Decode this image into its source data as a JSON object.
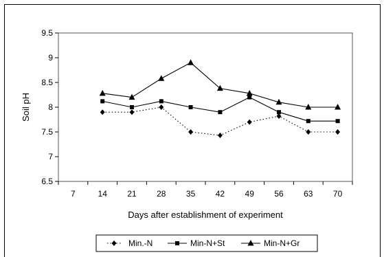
{
  "chart_data": {
    "type": "line",
    "title": "",
    "xlabel": "Days after establishment of experiment",
    "ylabel": "Soil pH",
    "x": [
      7,
      14,
      21,
      28,
      35,
      42,
      49,
      56,
      63,
      70
    ],
    "x_tick_labels": [
      "7",
      "14",
      "21",
      "28",
      "35",
      "42",
      "49",
      "56",
      "63",
      "70"
    ],
    "y_tick_labels": [
      "6.5",
      "7",
      "7.5",
      "8",
      "8.5",
      "9",
      "9.5"
    ],
    "ylim": [
      6.5,
      9.5
    ],
    "grid": false,
    "legend_position": "bottom",
    "series": [
      {
        "name": "Min.-N",
        "marker": "diamond",
        "line_style": "dotted",
        "x": [
          14,
          21,
          28,
          35,
          42,
          49,
          56,
          63,
          70
        ],
        "values": [
          7.9,
          7.9,
          8.0,
          7.5,
          7.43,
          7.7,
          7.82,
          7.5,
          7.5
        ]
      },
      {
        "name": "Min-N+St",
        "marker": "square",
        "line_style": "solid",
        "x": [
          14,
          21,
          28,
          35,
          42,
          49,
          56,
          63,
          70
        ],
        "values": [
          8.12,
          8.0,
          8.12,
          8.0,
          7.9,
          8.2,
          7.9,
          7.72,
          7.72
        ]
      },
      {
        "name": "Min-N+Gr",
        "marker": "triangle",
        "line_style": "solid",
        "x": [
          14,
          21,
          28,
          35,
          42,
          49,
          56,
          63,
          70
        ],
        "values": [
          8.28,
          8.2,
          8.58,
          8.9,
          8.38,
          8.28,
          8.1,
          8.0,
          8.0
        ]
      }
    ]
  }
}
